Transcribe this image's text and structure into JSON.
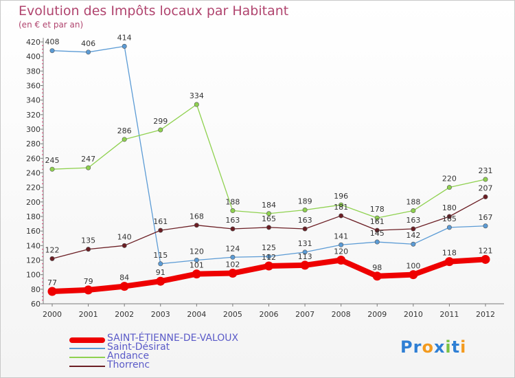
{
  "header": {
    "title": "Evolution des Impôts locaux par Habitant",
    "subtitle": "(en € et par an)"
  },
  "logo": {
    "text": "Proxiti",
    "letters": [
      "P",
      "r",
      "o",
      "x",
      "i",
      "t",
      "i"
    ],
    "colors": [
      "#2f7fd4",
      "#2f7fd4",
      "#f39a1e",
      "#2f7fd4",
      "#7ac143",
      "#2f7fd4",
      "#f39a1e"
    ]
  },
  "chart_data": {
    "type": "line",
    "title": "Evolution des Impôts locaux par Habitant",
    "subtitle": "(en € et par an)",
    "xlabel": "",
    "ylabel": "",
    "x": [
      "2000",
      "2001",
      "2002",
      "2003",
      "2004",
      "2005",
      "2006",
      "2007",
      "2008",
      "2009",
      "2010",
      "2011",
      "2012"
    ],
    "ylim": [
      60,
      420
    ],
    "yticks": [
      60,
      80,
      100,
      120,
      140,
      160,
      180,
      200,
      220,
      240,
      260,
      280,
      300,
      320,
      340,
      360,
      380,
      400,
      420
    ],
    "grid": false,
    "legend_position": "bottom-left",
    "series": [
      {
        "name": "SAINT-ÉTIENNE-DE-VALOUX",
        "color": "#ee0000",
        "values": [
          77,
          79,
          84,
          91,
          101,
          102,
          112,
          113,
          120,
          98,
          100,
          118,
          121
        ],
        "labels": [
          "77",
          "79",
          "84",
          "91",
          "101",
          "102",
          "112",
          "113",
          "120",
          "98",
          "100",
          "118",
          "121"
        ]
      },
      {
        "name": "Saint-Désirat",
        "color": "#5b9bd5",
        "values": [
          408,
          406,
          414,
          115,
          120,
          124,
          125,
          131,
          141,
          145,
          142,
          165,
          167
        ],
        "labels": [
          "408",
          "406",
          "414",
          "115",
          "120",
          "124",
          "125",
          "131",
          "141",
          "145",
          "142",
          "165",
          "167"
        ]
      },
      {
        "name": "Andance",
        "color": "#8fd14f",
        "values": [
          245,
          247,
          286,
          299,
          334,
          188,
          184,
          189,
          196,
          178,
          188,
          220,
          231
        ],
        "labels": [
          "245",
          "247",
          "286",
          "299",
          "334",
          "188",
          "184",
          "189",
          "196",
          "178",
          "188",
          "220",
          "231"
        ]
      },
      {
        "name": "Thorrenc",
        "color": "#6b1e24",
        "values": [
          122,
          135,
          140,
          161,
          168,
          163,
          165,
          163,
          181,
          161,
          163,
          180,
          207
        ],
        "labels": [
          "122",
          "135",
          "140",
          "161",
          "168",
          "163",
          "165",
          "163",
          "181",
          "161",
          "163",
          "180",
          "207"
        ]
      }
    ]
  }
}
